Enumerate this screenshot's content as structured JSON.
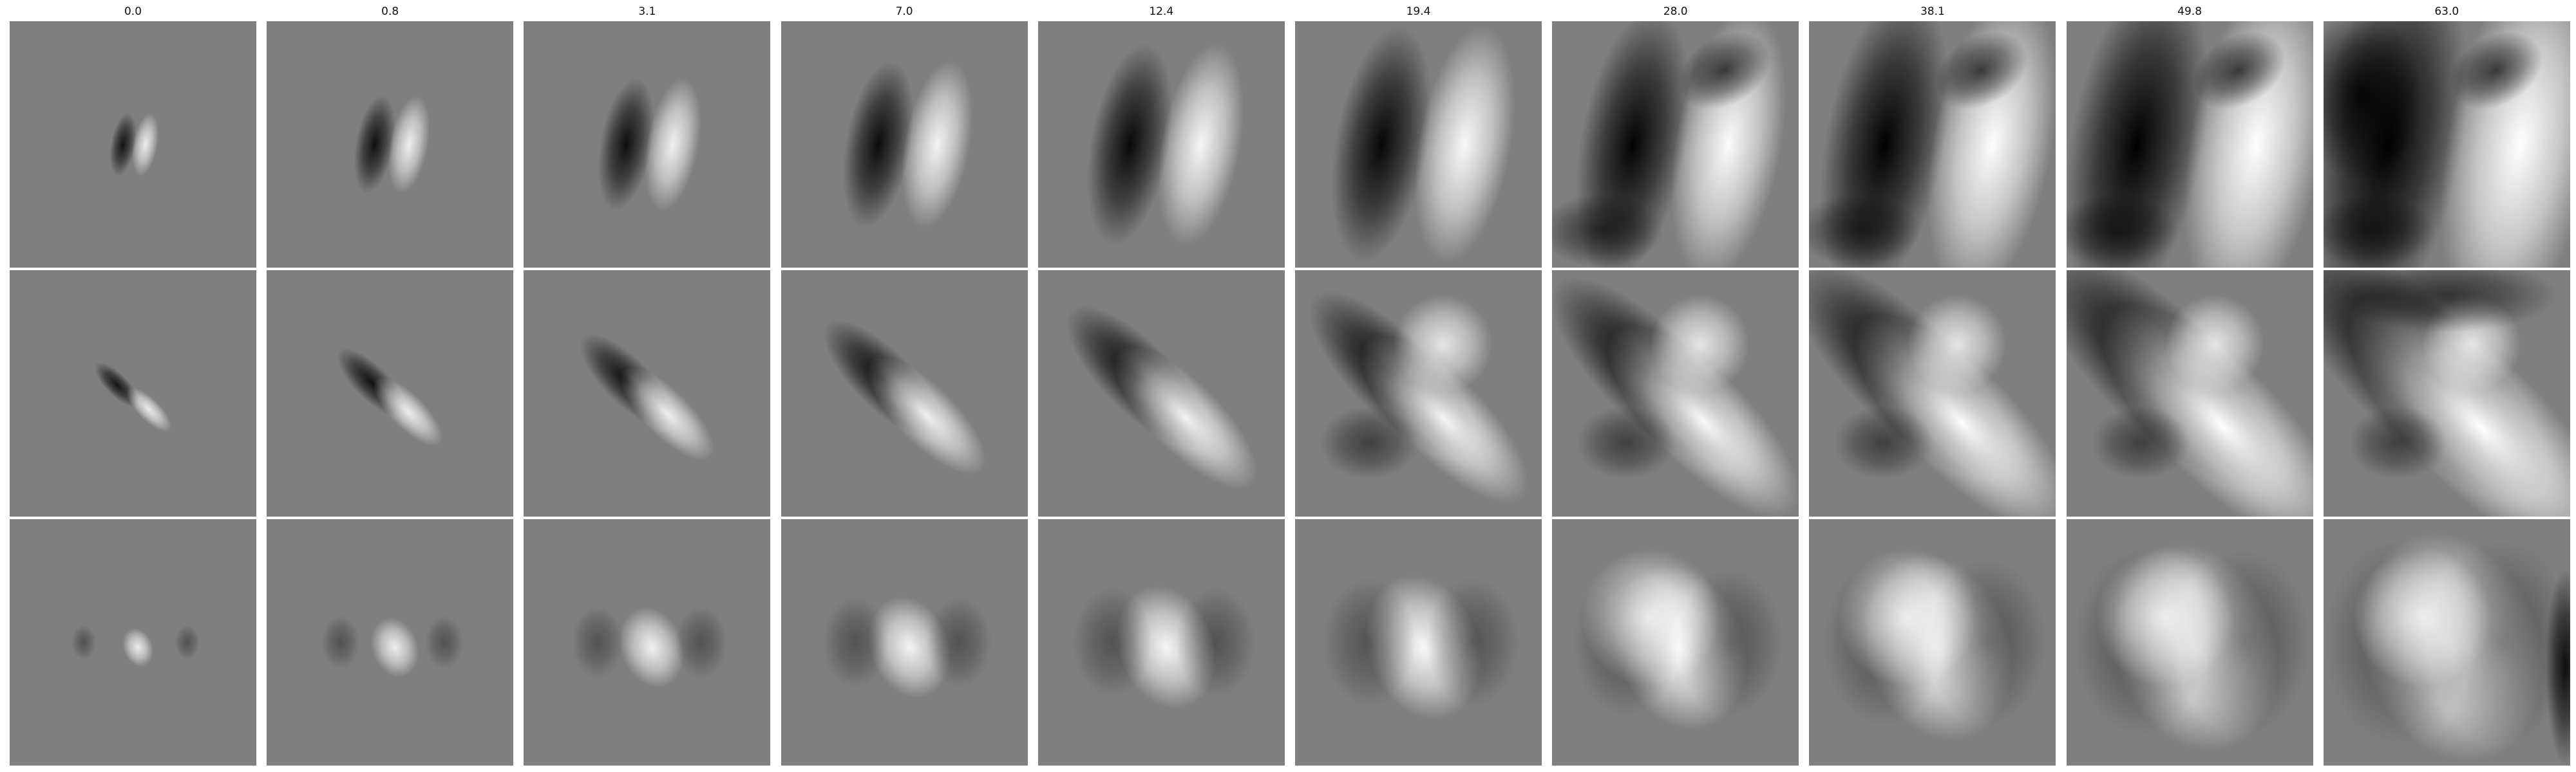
{
  "figure": {
    "columns": [
      {
        "label": "0.0"
      },
      {
        "label": "0.8"
      },
      {
        "label": "3.1"
      },
      {
        "label": "7.0"
      },
      {
        "label": "12.4"
      },
      {
        "label": "19.4"
      },
      {
        "label": "28.0"
      },
      {
        "label": "38.1"
      },
      {
        "label": "49.8"
      },
      {
        "label": "63.0"
      }
    ],
    "rows": [
      {
        "kind": "vertical dark-light pair"
      },
      {
        "kind": "diagonal dark-light pair"
      },
      {
        "kind": "bright center blob"
      }
    ],
    "colors": {
      "background": "#ffffff",
      "panel_base": "#7f7f7f"
    }
  }
}
